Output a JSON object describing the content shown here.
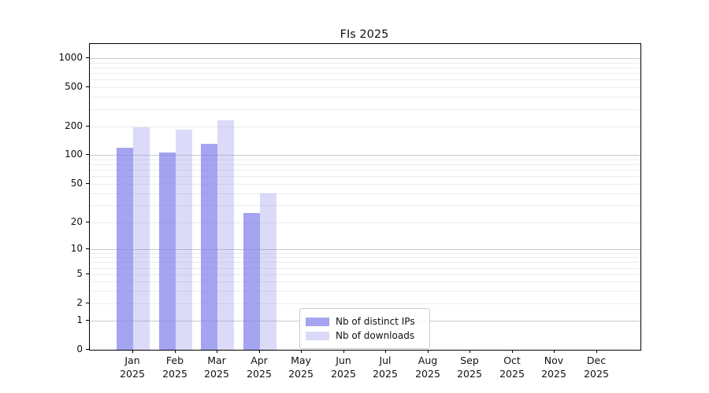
{
  "title": "FIs 2025",
  "chart_data": {
    "type": "bar",
    "title": "FIs 2025",
    "xlabel": "",
    "ylabel": "",
    "categories": [
      "Jan",
      "Feb",
      "Mar",
      "Apr",
      "May",
      "Jun",
      "Jul",
      "Aug",
      "Sep",
      "Oct",
      "Nov",
      "Dec"
    ],
    "category_year": "2025",
    "series": [
      {
        "name": "Nb of distinct IPs",
        "fill": "rgba(125,125,235,0.70)",
        "values": [
          120,
          105,
          130,
          25,
          null,
          null,
          null,
          null,
          null,
          null,
          null,
          null
        ]
      },
      {
        "name": "Nb of downloads",
        "fill": "rgba(125,125,235,0.28)",
        "values": [
          197,
          185,
          232,
          40,
          null,
          null,
          null,
          null,
          null,
          null,
          null,
          null
        ]
      }
    ],
    "y_scale": "symlog",
    "y_ticks": [
      0,
      1,
      2,
      5,
      10,
      20,
      50,
      100,
      200,
      500,
      1000
    ],
    "y_gridlines_major": [
      1,
      10,
      100,
      1000
    ],
    "y_gridlines_minor": [
      2,
      3,
      4,
      5,
      6,
      7,
      8,
      9,
      20,
      30,
      40,
      50,
      60,
      70,
      80,
      90,
      200,
      300,
      400,
      500,
      600,
      700,
      800,
      900
    ],
    "ylim": [
      0,
      1400
    ],
    "grid": "both",
    "legend_position": "lower center",
    "colors": {
      "bar_base": "#7d7deb",
      "grid_minor": "#ececec",
      "grid_major": "#c9c9c9",
      "spine": "#000000"
    }
  }
}
